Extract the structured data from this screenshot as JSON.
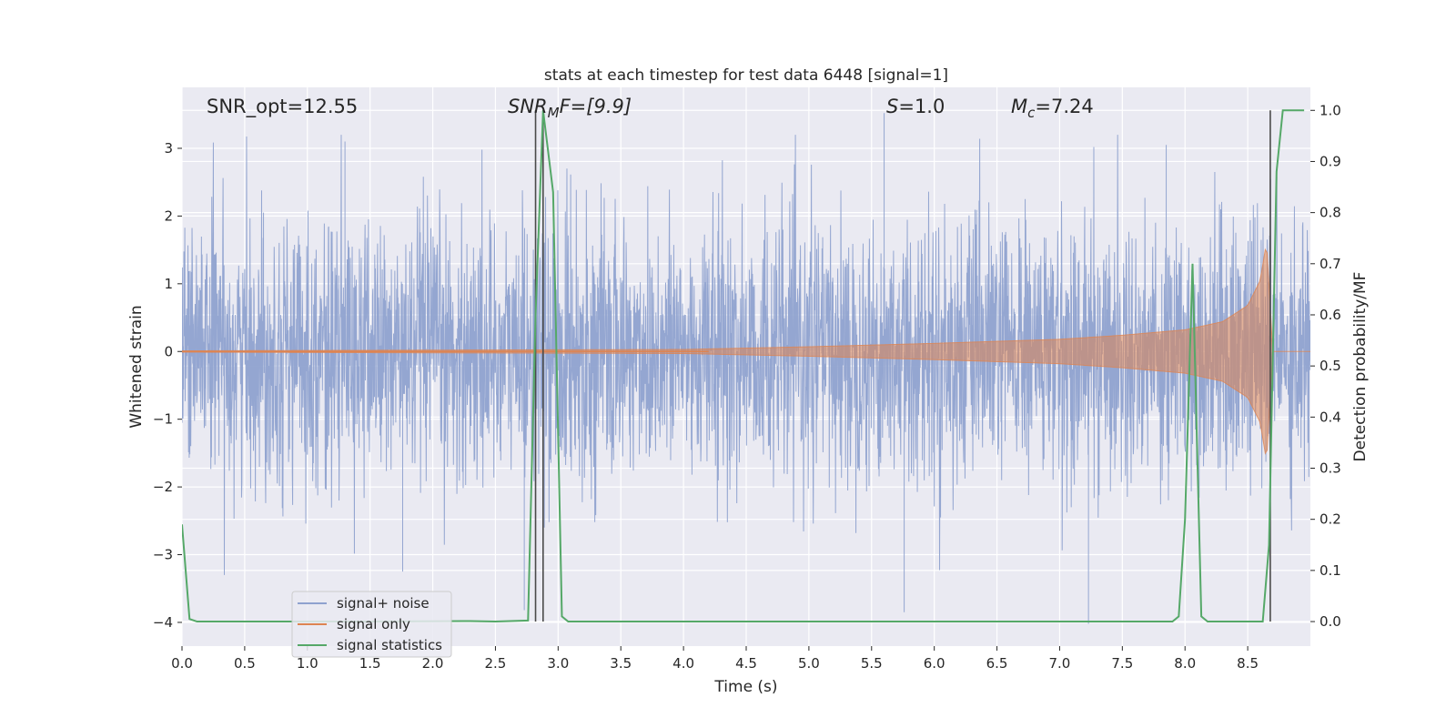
{
  "chart_data": {
    "type": "line",
    "title": "stats at each timestep for test data 6448 [signal=1]",
    "xlabel": "Time (s)",
    "ylabel": "Whitened strain",
    "y2label": "Detection probability/MF",
    "xlim": [
      0,
      9
    ],
    "ylim": [
      -4.35,
      3.9
    ],
    "y2lim": [
      -0.048,
      1.045
    ],
    "xticks": [
      0.0,
      0.5,
      1.0,
      1.5,
      2.0,
      2.5,
      3.0,
      3.5,
      4.0,
      4.5,
      5.0,
      5.5,
      6.0,
      6.5,
      7.0,
      7.5,
      8.0,
      8.5
    ],
    "xtick_labels": [
      "0.0",
      "0.5",
      "1.0",
      "1.5",
      "2.0",
      "2.5",
      "3.0",
      "3.5",
      "4.0",
      "4.5",
      "5.0",
      "5.5",
      "6.0",
      "6.5",
      "7.0",
      "7.5",
      "8.0",
      "8.5"
    ],
    "yticks": [
      3,
      2,
      1,
      0,
      -1,
      -2,
      -3,
      -4
    ],
    "ytick_labels": [
      "3",
      "2",
      "1",
      "0",
      "−1",
      "−2",
      "−3",
      "−4"
    ],
    "y2ticks": [
      1.0,
      0.9,
      0.8,
      0.7,
      0.6,
      0.5,
      0.4,
      0.3,
      0.2,
      0.1,
      0.0
    ],
    "y2tick_labels": [
      "1.0",
      "0.9",
      "0.8",
      "0.7",
      "0.6",
      "0.5",
      "0.4",
      "0.3",
      "0.2",
      "0.1",
      "0.0"
    ],
    "grid": true,
    "legend_position": "lower-left",
    "annotations": {
      "snr_opt": "SNR_opt=12.55",
      "snr_mf_base": "SNR",
      "snr_mf_sub": "M",
      "snr_mf_rest": "F=[9.9]",
      "s_sym": "S",
      "s_val": "=1.0",
      "mc_sym": "M",
      "mc_sub": "c",
      "mc_val": "=7.24"
    },
    "vlines_x": [
      2.82,
      2.88,
      8.68
    ],
    "series": [
      {
        "name": "signal+ noise",
        "axis": "left",
        "color": "#8fa2cf",
        "noise_sigma": 0.95,
        "x_end": 9.0,
        "spikes": [
          {
            "x": 2.73,
            "y": -3.82
          },
          {
            "x": 1.76,
            "y": -3.25
          },
          {
            "x": 5.76,
            "y": -3.85
          },
          {
            "x": 7.23,
            "y": -4.02
          },
          {
            "x": 2.89,
            "y": -2.6
          },
          {
            "x": 5.6,
            "y": 3.52
          },
          {
            "x": 2.82,
            "y": 3.52
          },
          {
            "x": 0.65,
            "y": 2.05
          },
          {
            "x": 1.3,
            "y": 3.1
          },
          {
            "x": 7.85,
            "y": 3.05
          }
        ]
      },
      {
        "name": "signal only",
        "axis": "left",
        "color": "#dd8452",
        "envelope": [
          {
            "x": 0.0,
            "y": 0.01
          },
          {
            "x": 4.0,
            "y": 0.03
          },
          {
            "x": 5.0,
            "y": 0.07
          },
          {
            "x": 6.0,
            "y": 0.12
          },
          {
            "x": 7.0,
            "y": 0.18
          },
          {
            "x": 7.5,
            "y": 0.24
          },
          {
            "x": 8.0,
            "y": 0.32
          },
          {
            "x": 8.3,
            "y": 0.44
          },
          {
            "x": 8.5,
            "y": 0.68
          },
          {
            "x": 8.6,
            "y": 1.05
          },
          {
            "x": 8.65,
            "y": 1.62
          },
          {
            "x": 8.7,
            "y": 0.0
          },
          {
            "x": 9.0,
            "y": 0.0
          }
        ]
      },
      {
        "name": "signal statistics",
        "axis": "right",
        "color": "#55a868",
        "x": [
          0.0,
          0.06,
          0.12,
          1.5,
          2.3,
          2.5,
          2.76,
          2.82,
          2.88,
          2.96,
          3.03,
          3.08,
          5.0,
          7.9,
          7.95,
          8.0,
          8.06,
          8.13,
          8.18,
          8.62,
          8.67,
          8.73,
          8.78,
          8.95
        ],
        "y": [
          0.19,
          0.005,
          0.0,
          0.0,
          0.001,
          0.0,
          0.002,
          0.6,
          1.0,
          0.84,
          0.01,
          0.0,
          0.0,
          0.0,
          0.01,
          0.2,
          0.7,
          0.01,
          0.0,
          0.0,
          0.15,
          0.88,
          1.0,
          1.0
        ]
      }
    ]
  }
}
